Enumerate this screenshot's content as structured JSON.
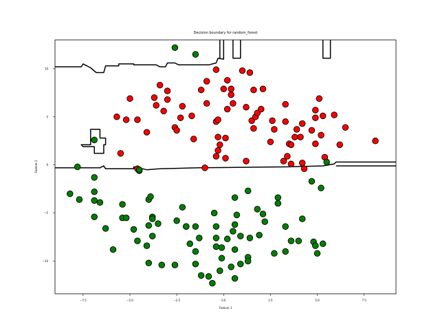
{
  "chart_data": {
    "type": "scatter",
    "title": "Decision boundary for random_forest",
    "xlabel": "Feature 1",
    "ylabel": "Feature 2",
    "xlim": [
      -9.0,
      9.2
    ],
    "ylim": [
      -13.4,
      13.0
    ],
    "xticks": [
      -7.5,
      -5.0,
      -2.5,
      0.0,
      2.5,
      5.0,
      7.5
    ],
    "xtick_labels": [
      "−7.5",
      "−5.0",
      "−2.5",
      "0.0",
      "2.5",
      "5.0",
      "7.5"
    ],
    "yticks": [
      -10,
      -5,
      0,
      5,
      10
    ],
    "ytick_labels": [
      "−10",
      "−5",
      "0",
      "5",
      "10"
    ],
    "grid": false,
    "legend": "none",
    "series": [
      {
        "color": "#ff0000",
        "points": [
          [
            -5.7,
            5.0
          ],
          [
            -5.0,
            6.9
          ],
          [
            -5.2,
            4.7
          ],
          [
            -4.6,
            4.7
          ],
          [
            -4.1,
            3.4
          ],
          [
            -5.5,
            1.2
          ],
          [
            -3.7,
            7.0
          ],
          [
            -3.4,
            8.3
          ],
          [
            -3.6,
            6.2
          ],
          [
            -3.2,
            5.6
          ],
          [
            -3.0,
            7.7
          ],
          [
            -3.0,
            6.8
          ],
          [
            -2.6,
            3.9
          ],
          [
            -2.5,
            3.6
          ],
          [
            -2.3,
            4.9
          ],
          [
            -2.2,
            6.1
          ],
          [
            -1.7,
            5.1
          ],
          [
            -1.6,
            2.7
          ],
          [
            -1.2,
            7.8
          ],
          [
            -0.9,
            8.7
          ],
          [
            -0.9,
            6.4
          ],
          [
            -0.4,
            9.9
          ],
          [
            -0.4,
            4.5
          ],
          [
            -0.3,
            4.7
          ],
          [
            -0.3,
            2.9
          ],
          [
            -0.2,
            2.1
          ],
          [
            -0.3,
            1.5
          ],
          [
            -0.4,
            0.9
          ],
          [
            0.1,
            2.8
          ],
          [
            0.1,
            0.7
          ],
          [
            0.0,
            7.9
          ],
          [
            0.2,
            8.8
          ],
          [
            0.4,
            7.9
          ],
          [
            0.4,
            7.3
          ],
          [
            0.2,
            5.8
          ],
          [
            0.5,
            6.4
          ],
          [
            1.0,
            9.8
          ],
          [
            1.4,
            9.6
          ],
          [
            1.2,
            6.0
          ],
          [
            1.5,
            4.6
          ],
          [
            1.6,
            3.8
          ],
          [
            1.6,
            7.8
          ],
          [
            1.7,
            5.0
          ],
          [
            1.8,
            5.4
          ],
          [
            2.0,
            5.8
          ],
          [
            2.1,
            7.9
          ],
          [
            2.6,
            4.6
          ],
          [
            2.5,
            2.4
          ],
          [
            2.7,
            3.7
          ],
          [
            3.3,
            6.3
          ],
          [
            3.3,
            4.5
          ],
          [
            3.5,
            2.2
          ],
          [
            3.4,
            0.9
          ],
          [
            3.2,
            0.4
          ],
          [
            3.6,
            0.1
          ],
          [
            3.9,
            3.7
          ],
          [
            4.1,
            2.9
          ],
          [
            4.2,
            4.3
          ],
          [
            4.2,
            0.2
          ],
          [
            4.3,
            -0.4
          ],
          [
            4.7,
            3.6
          ],
          [
            4.9,
            5.7
          ],
          [
            4.9,
            4.9
          ],
          [
            4.9,
            2.2
          ],
          [
            5.1,
            6.9
          ],
          [
            5.2,
            3.1
          ],
          [
            5.3,
            5.1
          ],
          [
            5.4,
            0.8
          ],
          [
            5.9,
            5.2
          ],
          [
            6.2,
            2.1
          ],
          [
            6.5,
            3.9
          ],
          [
            8.1,
            2.5
          ],
          [
            -1.0,
            -0.3
          ],
          [
            -4.6,
            -0.4
          ],
          [
            1.2,
            0.4
          ],
          [
            3.8,
            2.9
          ],
          [
            3.6,
            2.1
          ]
        ]
      },
      {
        "color": "#008000",
        "points": [
          [
            -2.6,
            12.2
          ],
          [
            -1.5,
            11.5
          ],
          [
            -6.9,
            2.6
          ],
          [
            -7.8,
            -0.2
          ],
          [
            -4.5,
            -0.6
          ],
          [
            -4.5,
            -0.5
          ],
          [
            -8.2,
            -3.0
          ],
          [
            -7.7,
            -3.6
          ],
          [
            -6.9,
            -1.3
          ],
          [
            -6.9,
            -2.8
          ],
          [
            -6.9,
            -3.7
          ],
          [
            -6.6,
            -3.9
          ],
          [
            -6.9,
            -5.4
          ],
          [
            -6.3,
            -6.6
          ],
          [
            -5.9,
            -8.8
          ],
          [
            -5.4,
            -4.1
          ],
          [
            -5.4,
            -5.5
          ],
          [
            -5.2,
            -5.5
          ],
          [
            -4.8,
            -6.7
          ],
          [
            -4.6,
            -7.9
          ],
          [
            -4.1,
            -8.4
          ],
          [
            -4.0,
            -3.6
          ],
          [
            -3.9,
            -3.3
          ],
          [
            -4.0,
            -6.3
          ],
          [
            -3.8,
            -5.4
          ],
          [
            -3.8,
            -5.6
          ],
          [
            -3.8,
            -7.4
          ],
          [
            -3.5,
            -6.1
          ],
          [
            -4.0,
            -10.2
          ],
          [
            -3.3,
            -10.4
          ],
          [
            -2.6,
            -10.4
          ],
          [
            -2.2,
            -4.4
          ],
          [
            -2.5,
            -5.8
          ],
          [
            -2.0,
            -6.4
          ],
          [
            -1.8,
            -8.2
          ],
          [
            -1.5,
            -6.4
          ],
          [
            -1.5,
            -9.0
          ],
          [
            -1.5,
            -10.3
          ],
          [
            -1.3,
            -7.6
          ],
          [
            -1.2,
            -11.5
          ],
          [
            -0.8,
            -11.6
          ],
          [
            -0.5,
            -5.0
          ],
          [
            -0.4,
            -6.4
          ],
          [
            -0.4,
            -7.6
          ],
          [
            -0.4,
            -8.5
          ],
          [
            -0.6,
            -12.3
          ],
          [
            -0.1,
            -8.6
          ],
          [
            -0.2,
            -11.0
          ],
          [
            -0.1,
            -9.7
          ],
          [
            0.2,
            -7.7
          ],
          [
            0.6,
            -3.4
          ],
          [
            0.4,
            -10.6
          ],
          [
            0.5,
            -6.9
          ],
          [
            0.7,
            -5.2
          ],
          [
            0.6,
            -6.2
          ],
          [
            0.6,
            -8.8
          ],
          [
            0.6,
            -11.8
          ],
          [
            0.9,
            -7.4
          ],
          [
            0.9,
            -10.3
          ],
          [
            1.3,
            -2.7
          ],
          [
            1.3,
            -9.6
          ],
          [
            1.3,
            -10.0
          ],
          [
            1.4,
            -7.6
          ],
          [
            1.8,
            -4.6
          ],
          [
            1.9,
            -7.3
          ],
          [
            2.1,
            -5.1
          ],
          [
            2.2,
            -5.9
          ],
          [
            2.7,
            -9.2
          ],
          [
            2.9,
            -4.0
          ],
          [
            3.3,
            -6.4
          ],
          [
            3.6,
            -7.9
          ],
          [
            4.0,
            -7.9
          ],
          [
            4.2,
            -5.6
          ],
          [
            4.7,
            -1.7
          ],
          [
            4.8,
            -8.0
          ],
          [
            4.9,
            -8.4
          ],
          [
            5.0,
            -9.2
          ],
          [
            5.2,
            -2.4
          ],
          [
            5.3,
            -8.2
          ],
          [
            5.5,
            0.3
          ],
          [
            3.3,
            -9.0
          ],
          [
            2.9,
            -3.4
          ],
          [
            -2.0,
            -6.4
          ]
        ]
      }
    ],
    "decision_boundary": [
      {
        "closed": false,
        "points": [
          [
            -9.0,
            10.2
          ],
          [
            -7.6,
            10.2
          ],
          [
            -7.5,
            10.5
          ],
          [
            -7.3,
            10.3
          ],
          [
            -7.1,
            10.1
          ],
          [
            -6.8,
            9.6
          ],
          [
            -6.4,
            9.6
          ],
          [
            -6.3,
            10.3
          ],
          [
            -5.6,
            10.3
          ],
          [
            -5.6,
            10.5
          ],
          [
            -4.8,
            10.5
          ],
          [
            -4.8,
            10.4
          ],
          [
            -3.6,
            10.4
          ],
          [
            -3.4,
            10.2
          ],
          [
            -3.1,
            10.2
          ],
          [
            -3.0,
            10.6
          ],
          [
            -2.6,
            10.6
          ],
          [
            -2.4,
            10.4
          ],
          [
            -0.8,
            10.4
          ],
          [
            -0.4,
            10.6
          ],
          [
            -0.3,
            11.1
          ],
          [
            0.0,
            11.0
          ],
          [
            0.0,
            13.0
          ]
        ]
      },
      {
        "closed": false,
        "points": [
          [
            -0.2,
            13.0
          ],
          [
            -0.2,
            11.1
          ]
        ]
      },
      {
        "closed": false,
        "points": [
          [
            0.5,
            13.0
          ],
          [
            0.5,
            11.1
          ],
          [
            0.9,
            11.1
          ],
          [
            0.9,
            13.0
          ]
        ]
      },
      {
        "closed": false,
        "points": [
          [
            5.3,
            13.0
          ],
          [
            5.3,
            11.1
          ],
          [
            5.7,
            11.1
          ],
          [
            5.7,
            13.0
          ]
        ]
      },
      {
        "closed": true,
        "points": [
          [
            -7.6,
            2.1
          ],
          [
            -7.1,
            2.1
          ],
          [
            -7.1,
            3.7
          ],
          [
            -6.6,
            3.7
          ],
          [
            -6.6,
            2.8
          ],
          [
            -6.3,
            2.8
          ],
          [
            -6.3,
            2.1
          ],
          [
            -6.4,
            2.1
          ],
          [
            -6.4,
            1.2
          ],
          [
            -6.9,
            1.2
          ],
          [
            -6.9,
            1.9
          ],
          [
            -7.5,
            1.9
          ],
          [
            -7.6,
            2.1
          ]
        ]
      },
      {
        "closed": false,
        "points": [
          [
            -9.0,
            -0.3
          ],
          [
            -6.6,
            -0.3
          ],
          [
            -6.4,
            -0.1
          ],
          [
            -6.3,
            -0.4
          ],
          [
            -4.8,
            -0.4
          ],
          [
            -4.8,
            -0.2
          ],
          [
            -4.1,
            -0.5
          ],
          [
            -3.4,
            -0.4
          ],
          [
            -1.4,
            -0.3
          ],
          [
            3.4,
            -0.2
          ],
          [
            5.3,
            -0.1
          ],
          [
            5.9,
            0.1
          ],
          [
            6.0,
            0.3
          ],
          [
            9.2,
            0.3
          ]
        ]
      },
      {
        "closed": false,
        "points": [
          [
            6.0,
            -0.1
          ],
          [
            9.2,
            -0.1
          ]
        ]
      }
    ]
  }
}
